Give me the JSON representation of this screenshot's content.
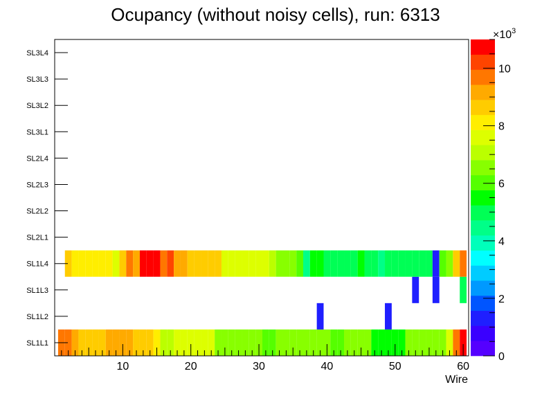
{
  "chart_data": {
    "type": "heatmap",
    "title": "Ocupancy (without noisy cells), run: 6313",
    "xlabel": "Wire",
    "ylabel": "",
    "x_range": [
      0,
      60.8
    ],
    "x_ticks": [
      "10",
      "20",
      "30",
      "40",
      "50",
      "60"
    ],
    "y_categories": [
      "SL1L1",
      "SL1L2",
      "SL1L3",
      "SL1L4",
      "SL2L1",
      "SL2L2",
      "SL2L3",
      "SL2L4",
      "SL3L1",
      "SL3L2",
      "SL3L3",
      "SL3L4"
    ],
    "z_range": [
      0,
      11000
    ],
    "z_multiplier_label": "×10",
    "z_multiplier_exponent": "3",
    "z_ticks": [
      "0",
      "2",
      "4",
      "6",
      "8",
      "10"
    ],
    "rows": [
      {
        "layer": "SL1L1",
        "wire_start": 1,
        "values": [
          9800,
          9900,
          9400,
          8500,
          8500,
          8500,
          8500,
          9000,
          9000,
          9000,
          9200,
          8500,
          8700,
          8700,
          8200,
          7000,
          7000,
          7500,
          7500,
          7500,
          7500,
          7500,
          7500,
          6800,
          6800,
          6500,
          6500,
          6500,
          6500,
          6500,
          6000,
          6000,
          6500,
          6500,
          6300,
          6300,
          6300,
          6300,
          6500,
          6500,
          6000,
          6000,
          6500,
          6500,
          6500,
          6500,
          5700,
          5700,
          5700,
          5700,
          5700,
          6500,
          6500,
          6300,
          6300,
          6300,
          6300,
          7800,
          9600,
          10700
        ]
      },
      {
        "layer": "SL1L2",
        "wire_start": 1,
        "values": [
          null,
          null,
          null,
          null,
          null,
          null,
          null,
          null,
          null,
          null,
          null,
          null,
          null,
          null,
          null,
          null,
          null,
          null,
          null,
          null,
          null,
          null,
          null,
          null,
          null,
          null,
          null,
          null,
          null,
          null,
          null,
          null,
          null,
          null,
          null,
          null,
          null,
          null,
          1200,
          null,
          null,
          null,
          null,
          null,
          null,
          null,
          null,
          null,
          1200,
          null,
          null,
          null,
          null,
          null,
          null,
          null,
          null,
          null,
          null,
          null
        ]
      },
      {
        "layer": "SL1L3",
        "wire_start": 1,
        "values": [
          null,
          null,
          null,
          null,
          null,
          null,
          null,
          null,
          null,
          null,
          null,
          null,
          null,
          null,
          null,
          null,
          null,
          null,
          null,
          null,
          null,
          null,
          null,
          null,
          null,
          null,
          null,
          null,
          null,
          null,
          null,
          null,
          null,
          null,
          null,
          null,
          null,
          null,
          null,
          null,
          null,
          null,
          null,
          null,
          null,
          null,
          null,
          null,
          null,
          null,
          null,
          null,
          1200,
          null,
          null,
          1200,
          null,
          null,
          null,
          5200
        ]
      },
      {
        "layer": "SL1L4",
        "wire_start": 2,
        "values": [
          8500,
          7900,
          7900,
          8200,
          8200,
          8200,
          8200,
          7700,
          8500,
          9800,
          9400,
          10700,
          10700,
          10700,
          9800,
          10100,
          9000,
          9000,
          8500,
          8500,
          8500,
          8500,
          8500,
          7800,
          7500,
          7500,
          7500,
          7500,
          7500,
          7500,
          7000,
          6400,
          6400,
          6400,
          5900,
          4700,
          5400,
          5400,
          5100,
          5100,
          5100,
          5100,
          5100,
          5400,
          5100,
          5100,
          4700,
          5100,
          5100,
          5100,
          5100,
          5100,
          5100,
          5100,
          1200,
          6100,
          6400,
          8700,
          9900
        ]
      },
      {
        "layer": "SL2L1",
        "wire_start": 1,
        "values": []
      },
      {
        "layer": "SL2L2",
        "wire_start": 1,
        "values": []
      },
      {
        "layer": "SL2L3",
        "wire_start": 1,
        "values": []
      },
      {
        "layer": "SL2L4",
        "wire_start": 1,
        "values": []
      },
      {
        "layer": "SL3L1",
        "wire_start": 1,
        "values": []
      },
      {
        "layer": "SL3L2",
        "wire_start": 1,
        "values": []
      },
      {
        "layer": "SL3L3",
        "wire_start": 1,
        "values": []
      },
      {
        "layer": "SL3L4",
        "wire_start": 1,
        "values": []
      }
    ],
    "palette": [
      "#5500ff",
      "#3a00ff",
      "#1f1fff",
      "#0055ff",
      "#0099ff",
      "#00ccff",
      "#00ffff",
      "#00ffbb",
      "#00ff88",
      "#00ff55",
      "#00ff00",
      "#55ff00",
      "#88ff00",
      "#bbff00",
      "#ddff00",
      "#ffee00",
      "#ffcc00",
      "#ffaa00",
      "#ff7700",
      "#ff4400",
      "#ff0000"
    ]
  }
}
